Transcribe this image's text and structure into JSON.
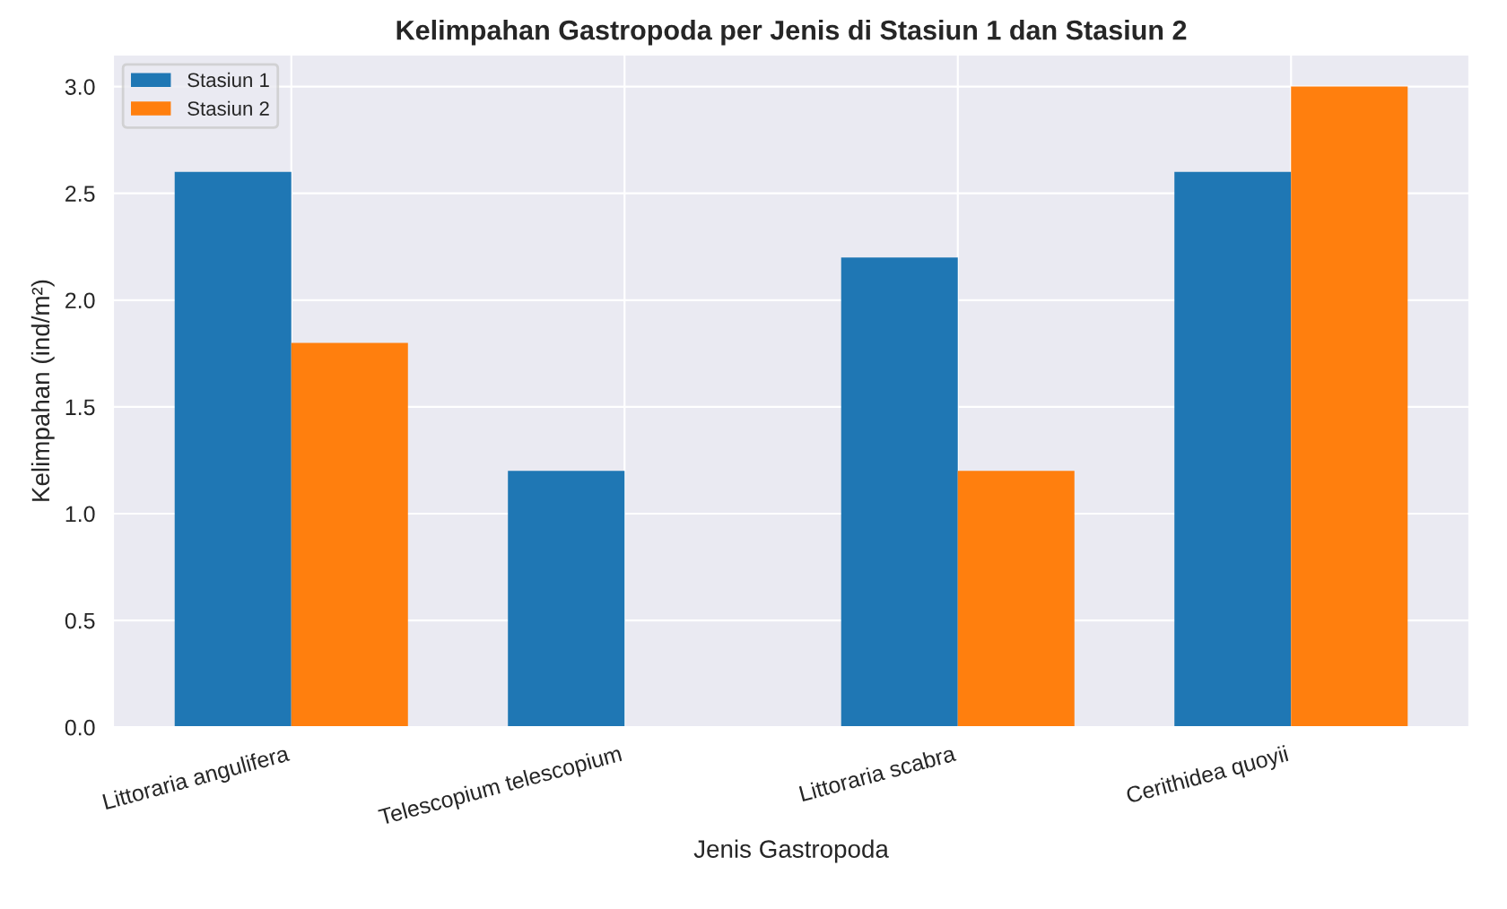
{
  "chart_data": {
    "type": "bar",
    "title": "Kelimpahan Gastropoda per Jenis di Stasiun 1 dan Stasiun 2",
    "xlabel": "Jenis Gastropoda",
    "ylabel": "Kelimpahan (ind/m²)",
    "categories": [
      "Littoraria angulifera",
      "Telescopium telescopium",
      "Littoraria scabra",
      "Cerithidea quoyii"
    ],
    "series": [
      {
        "name": "Stasiun 1",
        "color": "#1f77b4",
        "values": [
          2.6,
          1.2,
          2.2,
          2.6
        ]
      },
      {
        "name": "Stasiun 2",
        "color": "#ff7f0e",
        "values": [
          1.8,
          null,
          1.2,
          3.0
        ]
      }
    ],
    "ylim": [
      0,
      3.15
    ],
    "yticks": [
      {
        "value": 0,
        "label": "0.0"
      },
      {
        "value": 0.5,
        "label": "0.5"
      },
      {
        "value": 1,
        "label": "1.0"
      },
      {
        "value": 1.5,
        "label": "1.5"
      },
      {
        "value": 2,
        "label": "2.0"
      },
      {
        "value": 2.5,
        "label": "2.5"
      },
      {
        "value": 3,
        "label": "3.0"
      }
    ],
    "grid": true,
    "legend": "top left"
  }
}
